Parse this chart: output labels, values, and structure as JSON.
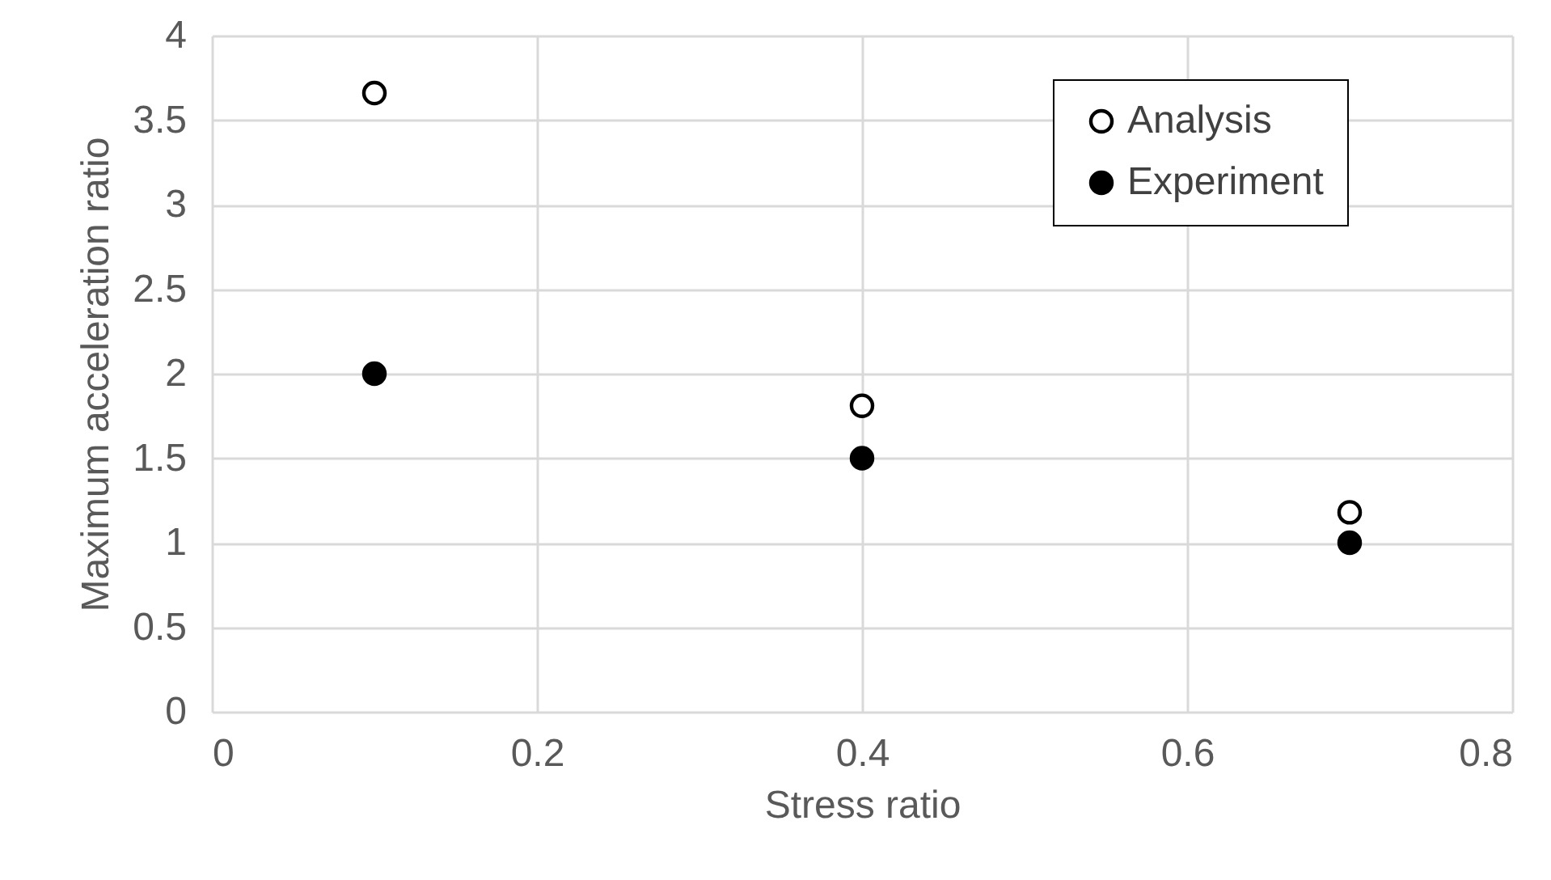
{
  "chart_data": {
    "type": "scatter",
    "xlabel": "Stress ratio",
    "ylabel": "Maximum acceleration ratio",
    "x": [
      0.1,
      0.4,
      0.7
    ],
    "series": [
      {
        "name": "Analysis",
        "color": "#ffffff",
        "values": [
          3.66,
          1.81,
          1.18
        ]
      },
      {
        "name": "Experiment",
        "color": "#000000",
        "values": [
          2.0,
          1.5,
          1.0
        ]
      }
    ],
    "xlim": [
      0,
      0.8
    ],
    "xticks": [
      0,
      0.2,
      0.4,
      0.6,
      0.8
    ],
    "ylim": [
      0,
      4
    ],
    "yticks": [
      0,
      0.5,
      1,
      1.5,
      2,
      2.5,
      3,
      3.5,
      4
    ],
    "grid": true,
    "legend": "top right",
    "marker": "circle"
  }
}
